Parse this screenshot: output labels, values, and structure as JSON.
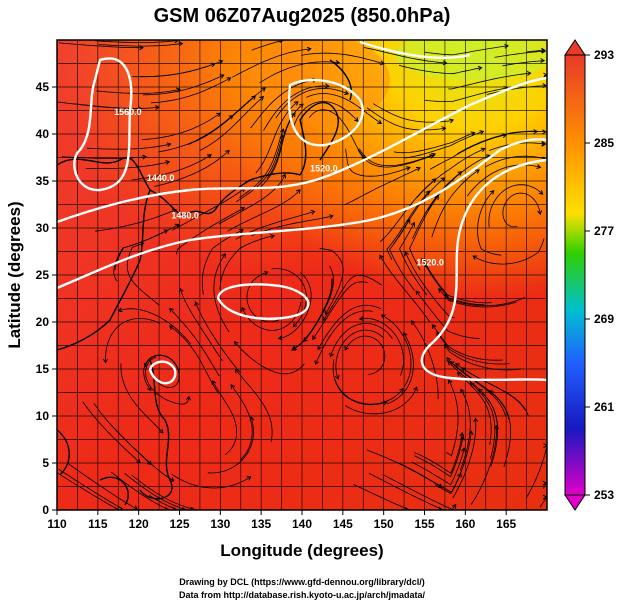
{
  "title": "GSM 06Z07Aug2025 (850.0hPa)",
  "xlabel": "Longitude (degrees)",
  "ylabel": "Latitude  (degrees)",
  "credits": [
    "Drawing by DCL (https://www.gfd-dennou.org/library/dcl/)",
    "Data from http://database.rish.kyoto-u.ac.jp/arch/jmadata/"
  ],
  "map": {
    "lon_range": [
      110,
      170
    ],
    "lat_range": [
      0,
      50
    ],
    "lon_ticks": [
      "110",
      "115",
      "120",
      "125",
      "130",
      "135",
      "140",
      "145",
      "150",
      "155",
      "160",
      "165"
    ],
    "lat_ticks": [
      "0",
      "5",
      "10",
      "15",
      "20",
      "25",
      "30",
      "35",
      "40",
      "45"
    ],
    "colorbar": {
      "ticks": [
        "293",
        "285",
        "277",
        "269",
        "261",
        "253"
      ],
      "colors": [
        "#e03020",
        "#ff8c00",
        "#ffe000",
        "#40d000",
        "#00c8c8",
        "#2060ff",
        "#1010c0",
        "#e000c0"
      ]
    },
    "contours": [
      {
        "label": "1440.0",
        "lon": 121,
        "lat": 35
      },
      {
        "label": "1480.0",
        "lon": 124,
        "lat": 31
      },
      {
        "label": "1520.0",
        "lon": 154,
        "lat": 26
      },
      {
        "label": "1560.0",
        "lon": 117,
        "lat": 42
      },
      {
        "label": "1520.0",
        "lon": 141,
        "lat": 36
      }
    ]
  }
}
